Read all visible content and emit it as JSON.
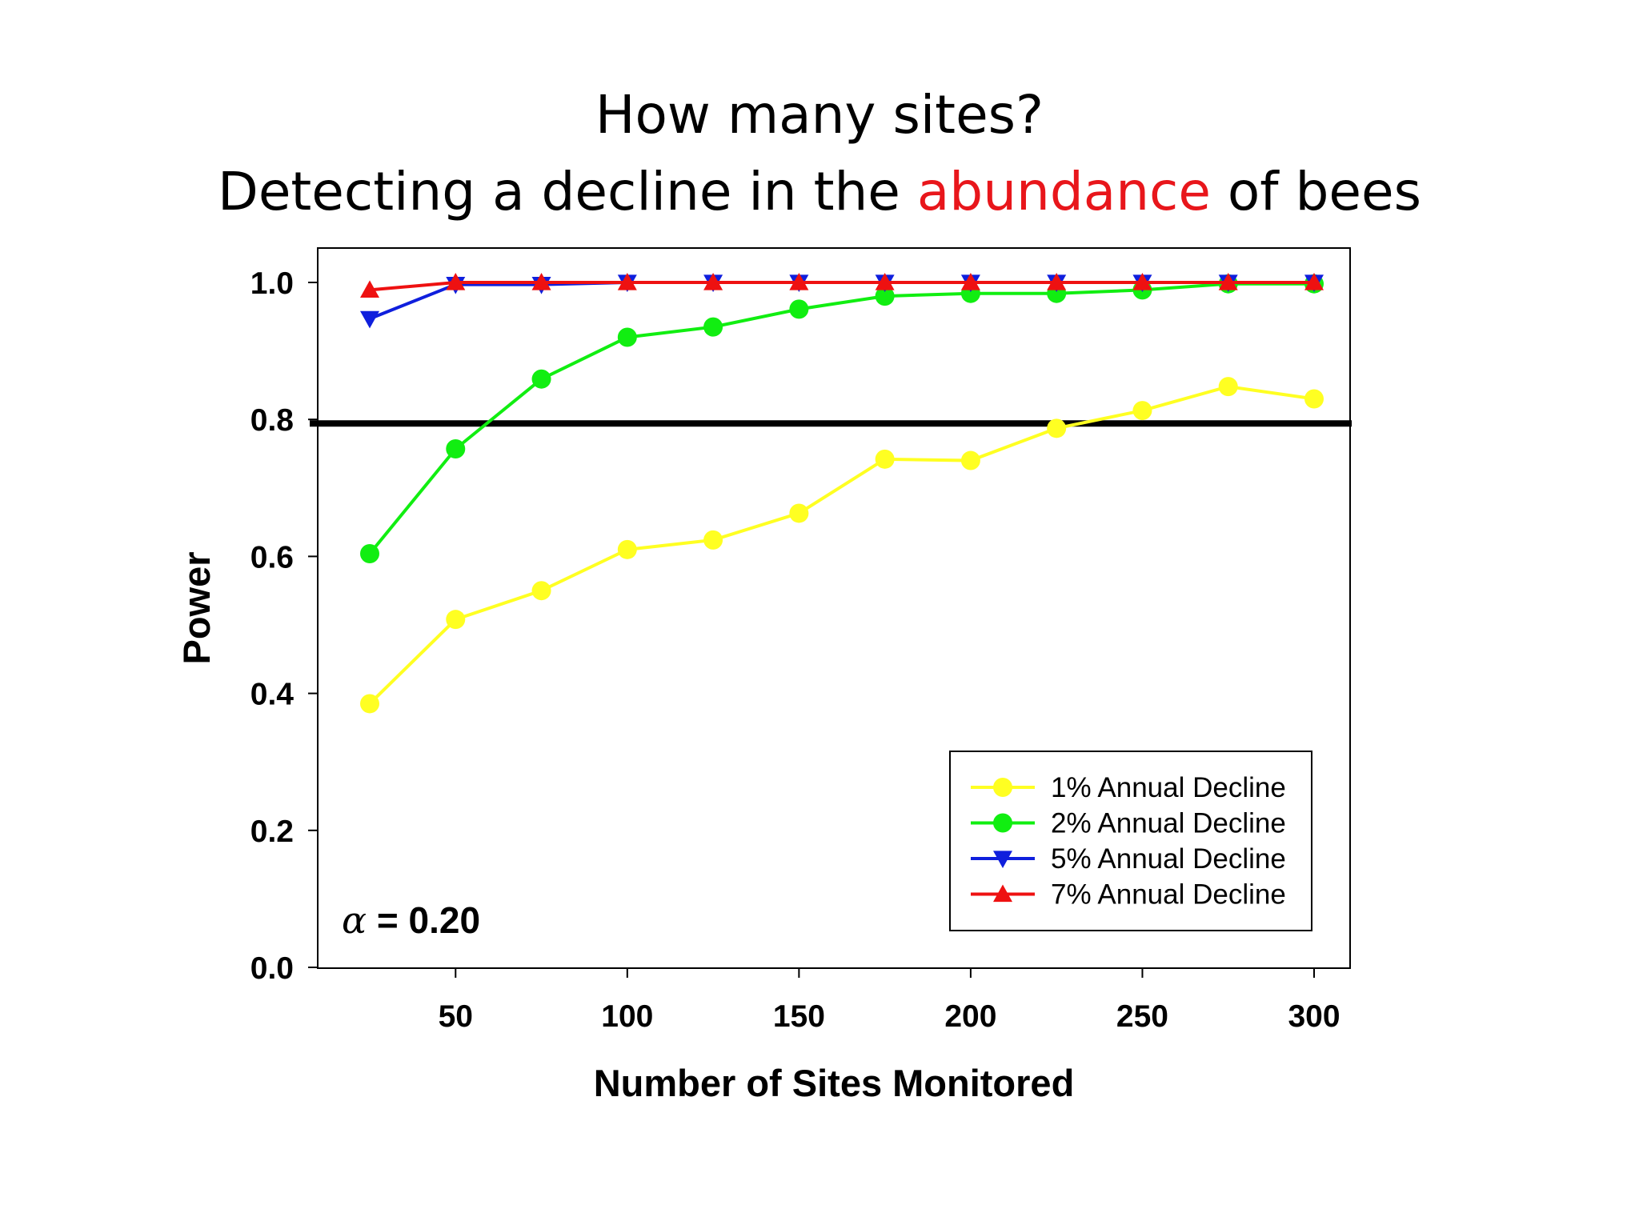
{
  "title": {
    "line1": "How many sites?",
    "line2_prefix": "Detecting a decline in the ",
    "line2_highlight": "abundance",
    "line2_suffix": " of bees",
    "highlight_color": "#e8161b"
  },
  "chart_data": {
    "type": "line",
    "xlabel": "Number of Sites Monitored",
    "ylabel": "Power",
    "xlim": [
      12,
      312
    ],
    "ylim": [
      0,
      1.05
    ],
    "xticks": [
      50,
      100,
      150,
      200,
      250,
      300
    ],
    "yticks": [
      0.0,
      0.2,
      0.4,
      0.6,
      0.8,
      1.0
    ],
    "ytick_labels": [
      "0.0",
      "0.2",
      "0.4",
      "0.6",
      "0.8",
      "1.0"
    ],
    "grid": false,
    "legend_position": "bottom-right",
    "x": [
      25,
      50,
      75,
      100,
      125,
      150,
      175,
      200,
      225,
      250,
      275,
      300
    ],
    "series": [
      {
        "name": "1% Annual Decline",
        "color": "#ffff22",
        "marker": "circle",
        "values": [
          0.385,
          0.508,
          0.55,
          0.61,
          0.624,
          0.663,
          0.742,
          0.74,
          0.787,
          0.813,
          0.848,
          0.83
        ]
      },
      {
        "name": "2% Annual Decline",
        "color": "#11ee11",
        "marker": "circle",
        "values": [
          0.604,
          0.757,
          0.859,
          0.92,
          0.935,
          0.961,
          0.98,
          0.984,
          0.984,
          0.989,
          0.998,
          0.998
        ]
      },
      {
        "name": "5% Annual Decline",
        "color": "#0f1fdd",
        "marker": "triangle-down",
        "values": [
          0.947,
          0.997,
          0.997,
          1.0,
          1.0,
          1.0,
          1.0,
          1.0,
          1.0,
          1.0,
          1.0,
          1.0
        ]
      },
      {
        "name": "7% Annual Decline",
        "color": "#ee1111",
        "marker": "triangle-up",
        "values": [
          0.989,
          1.0,
          1.0,
          1.0,
          1.0,
          1.0,
          1.0,
          1.0,
          1.0,
          1.0,
          1.0,
          1.0
        ]
      }
    ],
    "reference_line": {
      "y": 0.8,
      "color": "#000000"
    },
    "annotation": {
      "symbol": "α",
      "text": " = 0.20"
    }
  }
}
